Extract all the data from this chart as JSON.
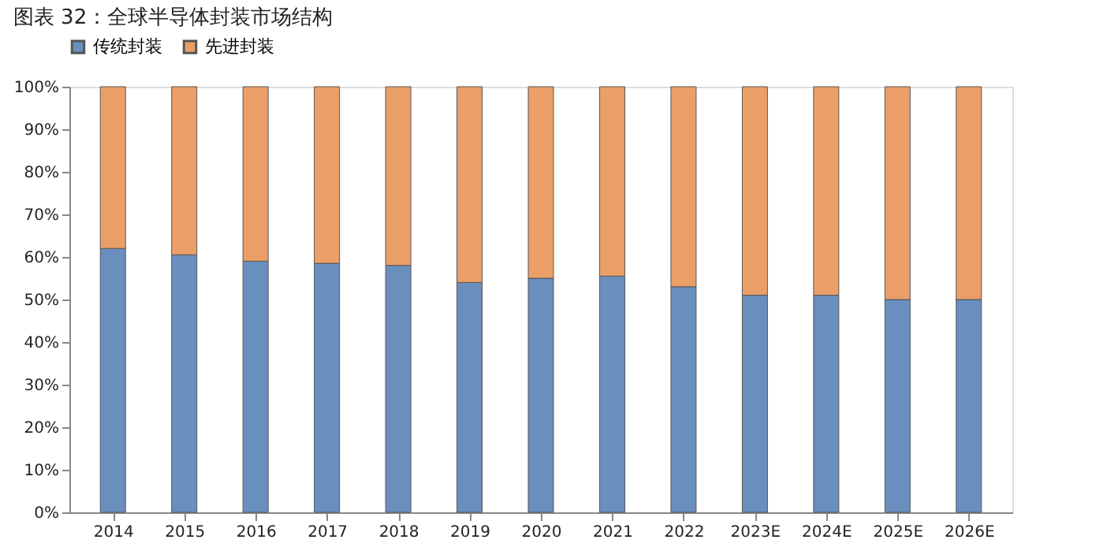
{
  "chart_data": {
    "type": "bar",
    "stacked": true,
    "title": "图表 32：全球半导体封装市场结构",
    "categories": [
      "2014",
      "2015",
      "2016",
      "2017",
      "2018",
      "2019",
      "2020",
      "2021",
      "2022",
      "2023E",
      "2024E",
      "2025E",
      "2026E"
    ],
    "series": [
      {
        "name": "传统封装",
        "color": "#6a8fbf",
        "values": [
          62,
          60.5,
          59,
          58.5,
          58,
          54,
          55,
          55.5,
          53,
          51,
          51,
          50,
          50
        ]
      },
      {
        "name": "先进封装",
        "color": "#eb9f68",
        "values": [
          38,
          39.5,
          41,
          41.5,
          42,
          46,
          45,
          44.5,
          47,
          49,
          49,
          50,
          50
        ]
      }
    ],
    "ylim": [
      0,
      100
    ],
    "yticks": [
      {
        "value": 0,
        "label": "0%"
      },
      {
        "value": 10,
        "label": "10%"
      },
      {
        "value": 20,
        "label": "20%"
      },
      {
        "value": 30,
        "label": "30%"
      },
      {
        "value": 40,
        "label": "40%"
      },
      {
        "value": 50,
        "label": "50%"
      },
      {
        "value": 60,
        "label": "60%"
      },
      {
        "value": 70,
        "label": "70%"
      },
      {
        "value": 80,
        "label": "80%"
      },
      {
        "value": 90,
        "label": "90%"
      },
      {
        "value": 100,
        "label": "100%"
      }
    ],
    "grid": false,
    "legend": "top"
  }
}
